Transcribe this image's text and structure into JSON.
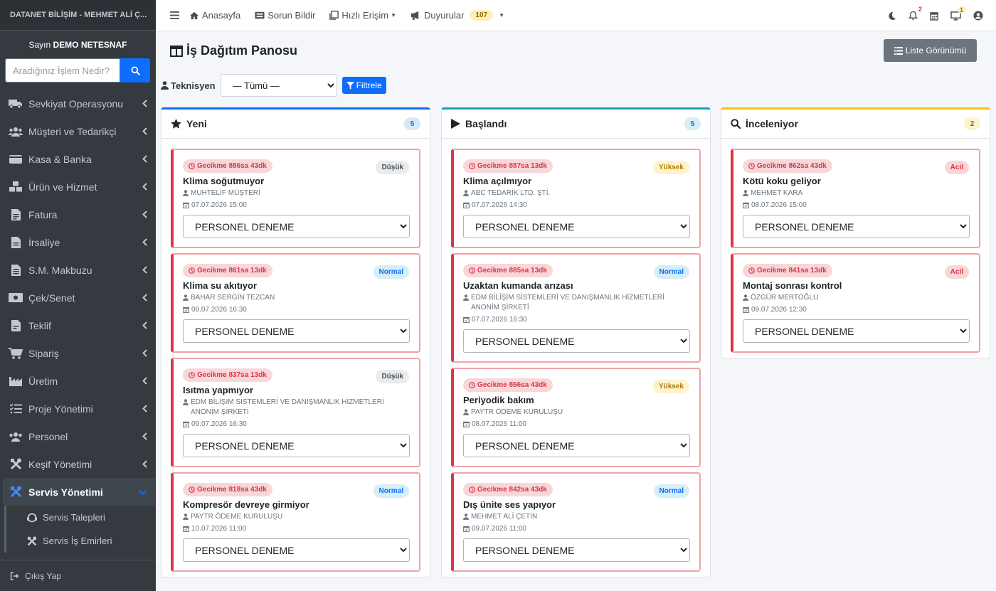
{
  "brand": "DATANET BİLİŞİM - MEHMET ALİ Ç...",
  "user": {
    "greeting": "Sayın",
    "name": "DEMO NETESNAF"
  },
  "search": {
    "placeholder": "Aradığınız İşlem Nedir?"
  },
  "menu": [
    {
      "label": "Sevkiyat Operasyonu",
      "icon": "truck-icon"
    },
    {
      "label": "Müşteri ve Tedarikçi",
      "icon": "users-icon"
    },
    {
      "label": "Kasa & Banka",
      "icon": "wallet-icon"
    },
    {
      "label": "Ürün ve Hizmet",
      "icon": "boxes-icon"
    },
    {
      "label": "Fatura",
      "icon": "invoice-icon"
    },
    {
      "label": "İrsaliye",
      "icon": "file-icon"
    },
    {
      "label": "S.M. Makbuzu",
      "icon": "receipt-icon"
    },
    {
      "label": "Çek/Senet",
      "icon": "money-icon"
    },
    {
      "label": "Teklif",
      "icon": "offer-icon"
    },
    {
      "label": "Sipariş",
      "icon": "cart-icon"
    },
    {
      "label": "Üretim",
      "icon": "industry-icon"
    },
    {
      "label": "Proje Yönetimi",
      "icon": "tasks-icon"
    },
    {
      "label": "Personel",
      "icon": "staff-icon"
    },
    {
      "label": "Keşif Yönetimi",
      "icon": "tools-icon"
    },
    {
      "label": "Servis Yönetimi",
      "icon": "service-icon"
    }
  ],
  "submenu": [
    {
      "label": "Servis Talepleri"
    },
    {
      "label": "Servis İş Emirleri"
    }
  ],
  "logout": "Çıkış Yap",
  "topnav": {
    "home": "Anasayfa",
    "report": "Sorun Bildir",
    "quick": "Hızlı Erişim",
    "announcements": "Duyurular",
    "announcements_count": "107",
    "notif_count": "2",
    "screen_count": "1"
  },
  "page": {
    "title": "İş Dağıtım Panosu",
    "list_view": "Liste Görünümü",
    "filter_label": "Teknisyen",
    "filter_value": "— Tümü —",
    "filter_button": "Filtrele"
  },
  "columns": [
    {
      "title": "Yeni",
      "count": "5",
      "accent": "#0d6efd",
      "count_bg": "#d6e9f8",
      "count_color": "#0d6efd",
      "icon": "star-icon",
      "cards": [
        {
          "delay": "Gecikme 886sa 43dk",
          "priority": "Düşük",
          "prio_bg": "#e9ecef",
          "prio_color": "#495057",
          "title": "Klima soğutmuyor",
          "customer": "MUHTELİF MÜŞTERİ",
          "date": "07.07.2026 15:00",
          "assignee": "PERSONEL DENEME"
        },
        {
          "delay": "Gecikme 861sa 13dk",
          "priority": "Normal",
          "prio_bg": "#d6eef8",
          "prio_color": "#0d6efd",
          "title": "Klima su akıtıyor",
          "customer": "BAHAR SERGİN TEZCAN",
          "date": "08.07.2026 16:30",
          "assignee": "PERSONEL DENEME"
        },
        {
          "delay": "Gecikme 837sa 13dk",
          "priority": "Düşük",
          "prio_bg": "#e9ecef",
          "prio_color": "#495057",
          "title": "Isıtma yapmıyor",
          "customer": "EDM BİLİŞİM SİSTEMLERİ VE DANIŞMANLIK HİZMETLERİ ANONİM ŞİRKETİ",
          "date": "09.07.2026 16:30",
          "assignee": "PERSONEL DENEME"
        },
        {
          "delay": "Gecikme 818sa 43dk",
          "priority": "Normal",
          "prio_bg": "#d6eef8",
          "prio_color": "#0d6efd",
          "title": "Kompresör devreye girmiyor",
          "customer": "PAYTR ÖDEME KURULUŞU",
          "date": "10.07.2026 11:00",
          "assignee": "PERSONEL DENEME"
        }
      ]
    },
    {
      "title": "Başlandı",
      "count": "5",
      "accent": "#17a2b8",
      "count_bg": "#d6eef8",
      "count_color": "#0d6efd",
      "icon": "play-icon",
      "cards": [
        {
          "delay": "Gecikme 887sa 13dk",
          "priority": "Yüksek",
          "prio_bg": "#fff3cd",
          "prio_color": "#b07a00",
          "title": "Klima açılmıyor",
          "customer": "ABC TEDARİK LTD. ŞTİ.",
          "date": "07.07.2026 14:30",
          "assignee": "PERSONEL DENEME"
        },
        {
          "delay": "Gecikme 885sa 13dk",
          "priority": "Normal",
          "prio_bg": "#d6eef8",
          "prio_color": "#0d6efd",
          "title": "Uzaktan kumanda arızası",
          "customer": "EDM BİLİŞİM SİSTEMLERİ VE DANIŞMANLIK HİZMETLERİ ANONİM ŞİRKETİ",
          "date": "07.07.2026 16:30",
          "assignee": "PERSONEL DENEME"
        },
        {
          "delay": "Gecikme 866sa 43dk",
          "priority": "Yüksek",
          "prio_bg": "#fff3cd",
          "prio_color": "#b07a00",
          "title": "Periyodik bakım",
          "customer": "PAYTR ÖDEME KURULUŞU",
          "date": "08.07.2026 11:00",
          "assignee": "PERSONEL DENEME"
        },
        {
          "delay": "Gecikme 842sa 43dk",
          "priority": "Normal",
          "prio_bg": "#d6eef8",
          "prio_color": "#0d6efd",
          "title": "Dış ünite ses yapıyor",
          "customer": "MEHMET ALİ ÇETİN",
          "date": "09.07.2026 11:00",
          "assignee": "PERSONEL DENEME"
        }
      ]
    },
    {
      "title": "İnceleniyor",
      "count": "2",
      "accent": "#ffc107",
      "count_bg": "#fff3cd",
      "count_color": "#856404",
      "icon": "search-icon",
      "cards": [
        {
          "delay": "Gecikme 862sa 43dk",
          "priority": "Acil",
          "prio_bg": "#f8d7da",
          "prio_color": "#dc3545",
          "title": "Kötü koku geliyor",
          "customer": "MEHMET KARA",
          "date": "08.07.2026 15:00",
          "assignee": "PERSONEL DENEME"
        },
        {
          "delay": "Gecikme 841sa 13dk",
          "priority": "Acil",
          "prio_bg": "#f8d7da",
          "prio_color": "#dc3545",
          "title": "Montaj sonrası kontrol",
          "customer": "ÖZGÜR MERTOĞLU",
          "date": "09.07.2026 12:30",
          "assignee": "PERSONEL DENEME"
        }
      ]
    }
  ]
}
